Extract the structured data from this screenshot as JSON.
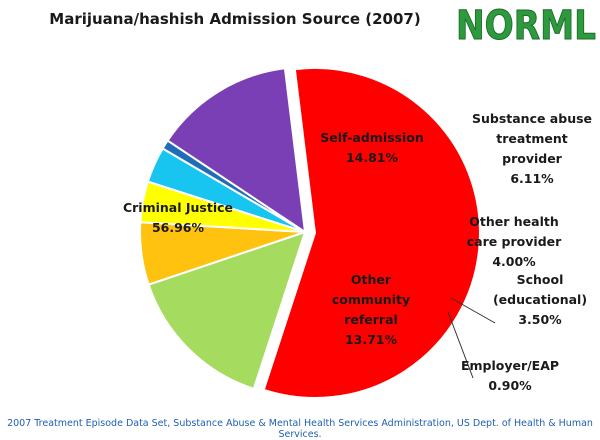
{
  "chart_data": {
    "type": "pie",
    "title": "Marijuana/hashish Admission Source (2007)",
    "slices": [
      {
        "lines": [
          "Criminal Justice"
        ],
        "value_label": "56.96%",
        "value": 56.96,
        "color": "#ff0000"
      },
      {
        "lines": [
          "Self-admission"
        ],
        "value_label": "14.81%",
        "value": 14.81,
        "color": "#a5db5e"
      },
      {
        "lines": [
          "Substance abuse",
          "treatment",
          "provider"
        ],
        "value_label": "6.11%",
        "value": 6.11,
        "color": "#ffc20e"
      },
      {
        "lines": [
          "Other health",
          "care provider"
        ],
        "value_label": "4.00%",
        "value": 4.0,
        "color": "#ffff00"
      },
      {
        "lines": [
          "School",
          "(educational)"
        ],
        "value_label": "3.50%",
        "value": 3.5,
        "color": "#18c4f0"
      },
      {
        "lines": [
          "Employer/EAP"
        ],
        "value_label": "0.90%",
        "value": 0.9,
        "color": "#1f6cb8"
      },
      {
        "lines": [
          "Other",
          "community",
          "referral"
        ],
        "value_label": "13.71%",
        "value": 13.71,
        "color": "#7b3fb5"
      }
    ],
    "exploded_slice": "Criminal Justice"
  },
  "logo_text": "NORML",
  "source_note": "2007 Treatment Episode Data Set, Substance Abuse & Mental Health Services Administration, US Dept. of Health & Human Services.",
  "colors": {
    "logo": "#2e9a3e",
    "source_note": "#1f5fb3",
    "outline": "#ffffff"
  }
}
